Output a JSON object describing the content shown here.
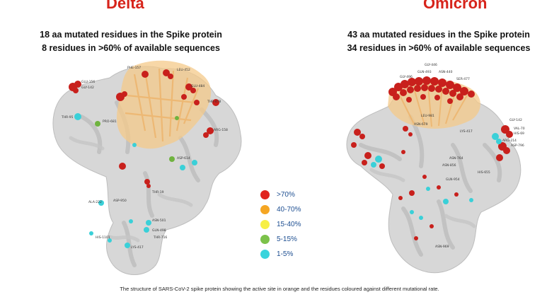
{
  "delta": {
    "title": "Delta",
    "line1": "18 aa mutated residues in the Spike protein",
    "line2": "8 residues in >60% of available sequences",
    "labels": [
      "GLU-156",
      "GLY-142",
      "PHE-157",
      "LEU-452",
      "THR-478",
      "GLU-484",
      "ARG-158",
      "THR-95",
      "ASP-614",
      "PRO-681",
      "ASP-950",
      "THR-19",
      "ASN-501",
      "GLN-498",
      "ALA-222",
      "LYS-417",
      "THR-716",
      "HIS-1101"
    ]
  },
  "omicron": {
    "title": "Omicron",
    "line1": "43 aa mutated residues in the Spike protein",
    "line2": "34 residues in >60% of available sequences",
    "labels": [
      "GLY-446",
      "GLN-493",
      "GLY-496",
      "SER-477",
      "ASN-440",
      "GLY-142",
      "VAL-70",
      "HIS-69",
      "ARG-214",
      "ASP-796",
      "ASN-679",
      "HIS-655",
      "ASN-764",
      "ASN-856",
      "GLN-954",
      "ASN-969",
      "LEU-981",
      "LYS-417"
    ]
  },
  "legend": {
    "items": [
      {
        "label": ">70%",
        "color": "#e0241f"
      },
      {
        "label": "40-70%",
        "color": "#f5a623"
      },
      {
        "label": "15-40%",
        "color": "#f7ef45"
      },
      {
        "label": "5-15%",
        "color": "#7cc24a"
      },
      {
        "label": "1-5%",
        "color": "#3ad4dc"
      }
    ]
  },
  "colors": {
    "title": "#d7241b",
    "protein_fill": "#d7d7d7",
    "protein_shade": "#b9b9b9",
    "active_site": "#f4c98a",
    "high": "#c8201c",
    "low": "#3ad0d8",
    "mid_green": "#6fb33f"
  },
  "caption": "The structure of SARS-CoV-2 spike protein showing the active site in orange and the residues coloured against different mutational rate."
}
